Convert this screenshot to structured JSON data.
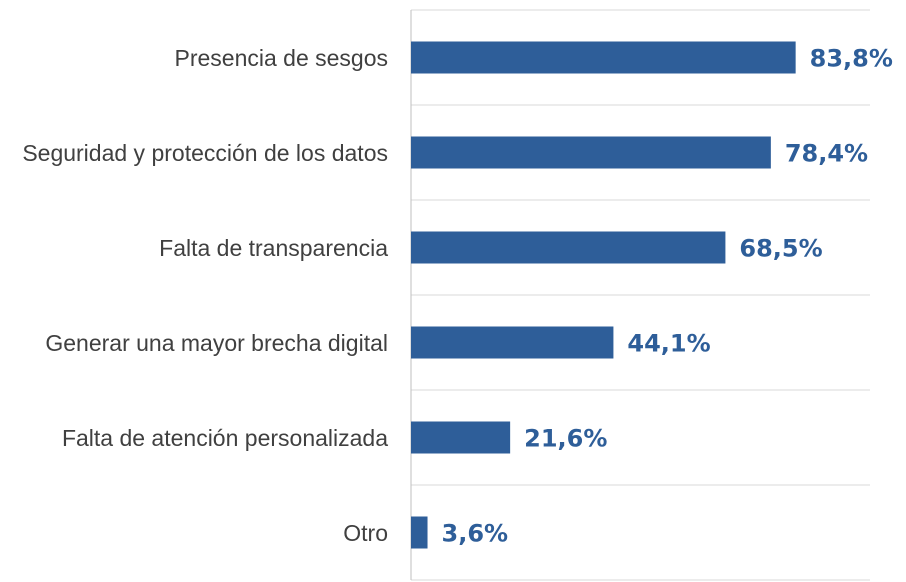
{
  "chart_data": {
    "type": "bar",
    "orientation": "horizontal",
    "categories": [
      "Presencia de sesgos",
      "Seguridad y protección de los datos",
      "Falta de transparencia",
      "Generar una mayor brecha digital",
      "Falta de atención personalizada",
      "Otro"
    ],
    "values": [
      83.8,
      78.4,
      68.5,
      44.1,
      21.6,
      3.6
    ],
    "value_labels": [
      "83,8%",
      "78,4%",
      "68,5%",
      "44,1%",
      "21,6%",
      "3,6%"
    ],
    "color": "#2e5e99",
    "xlim": [
      0,
      100
    ]
  }
}
